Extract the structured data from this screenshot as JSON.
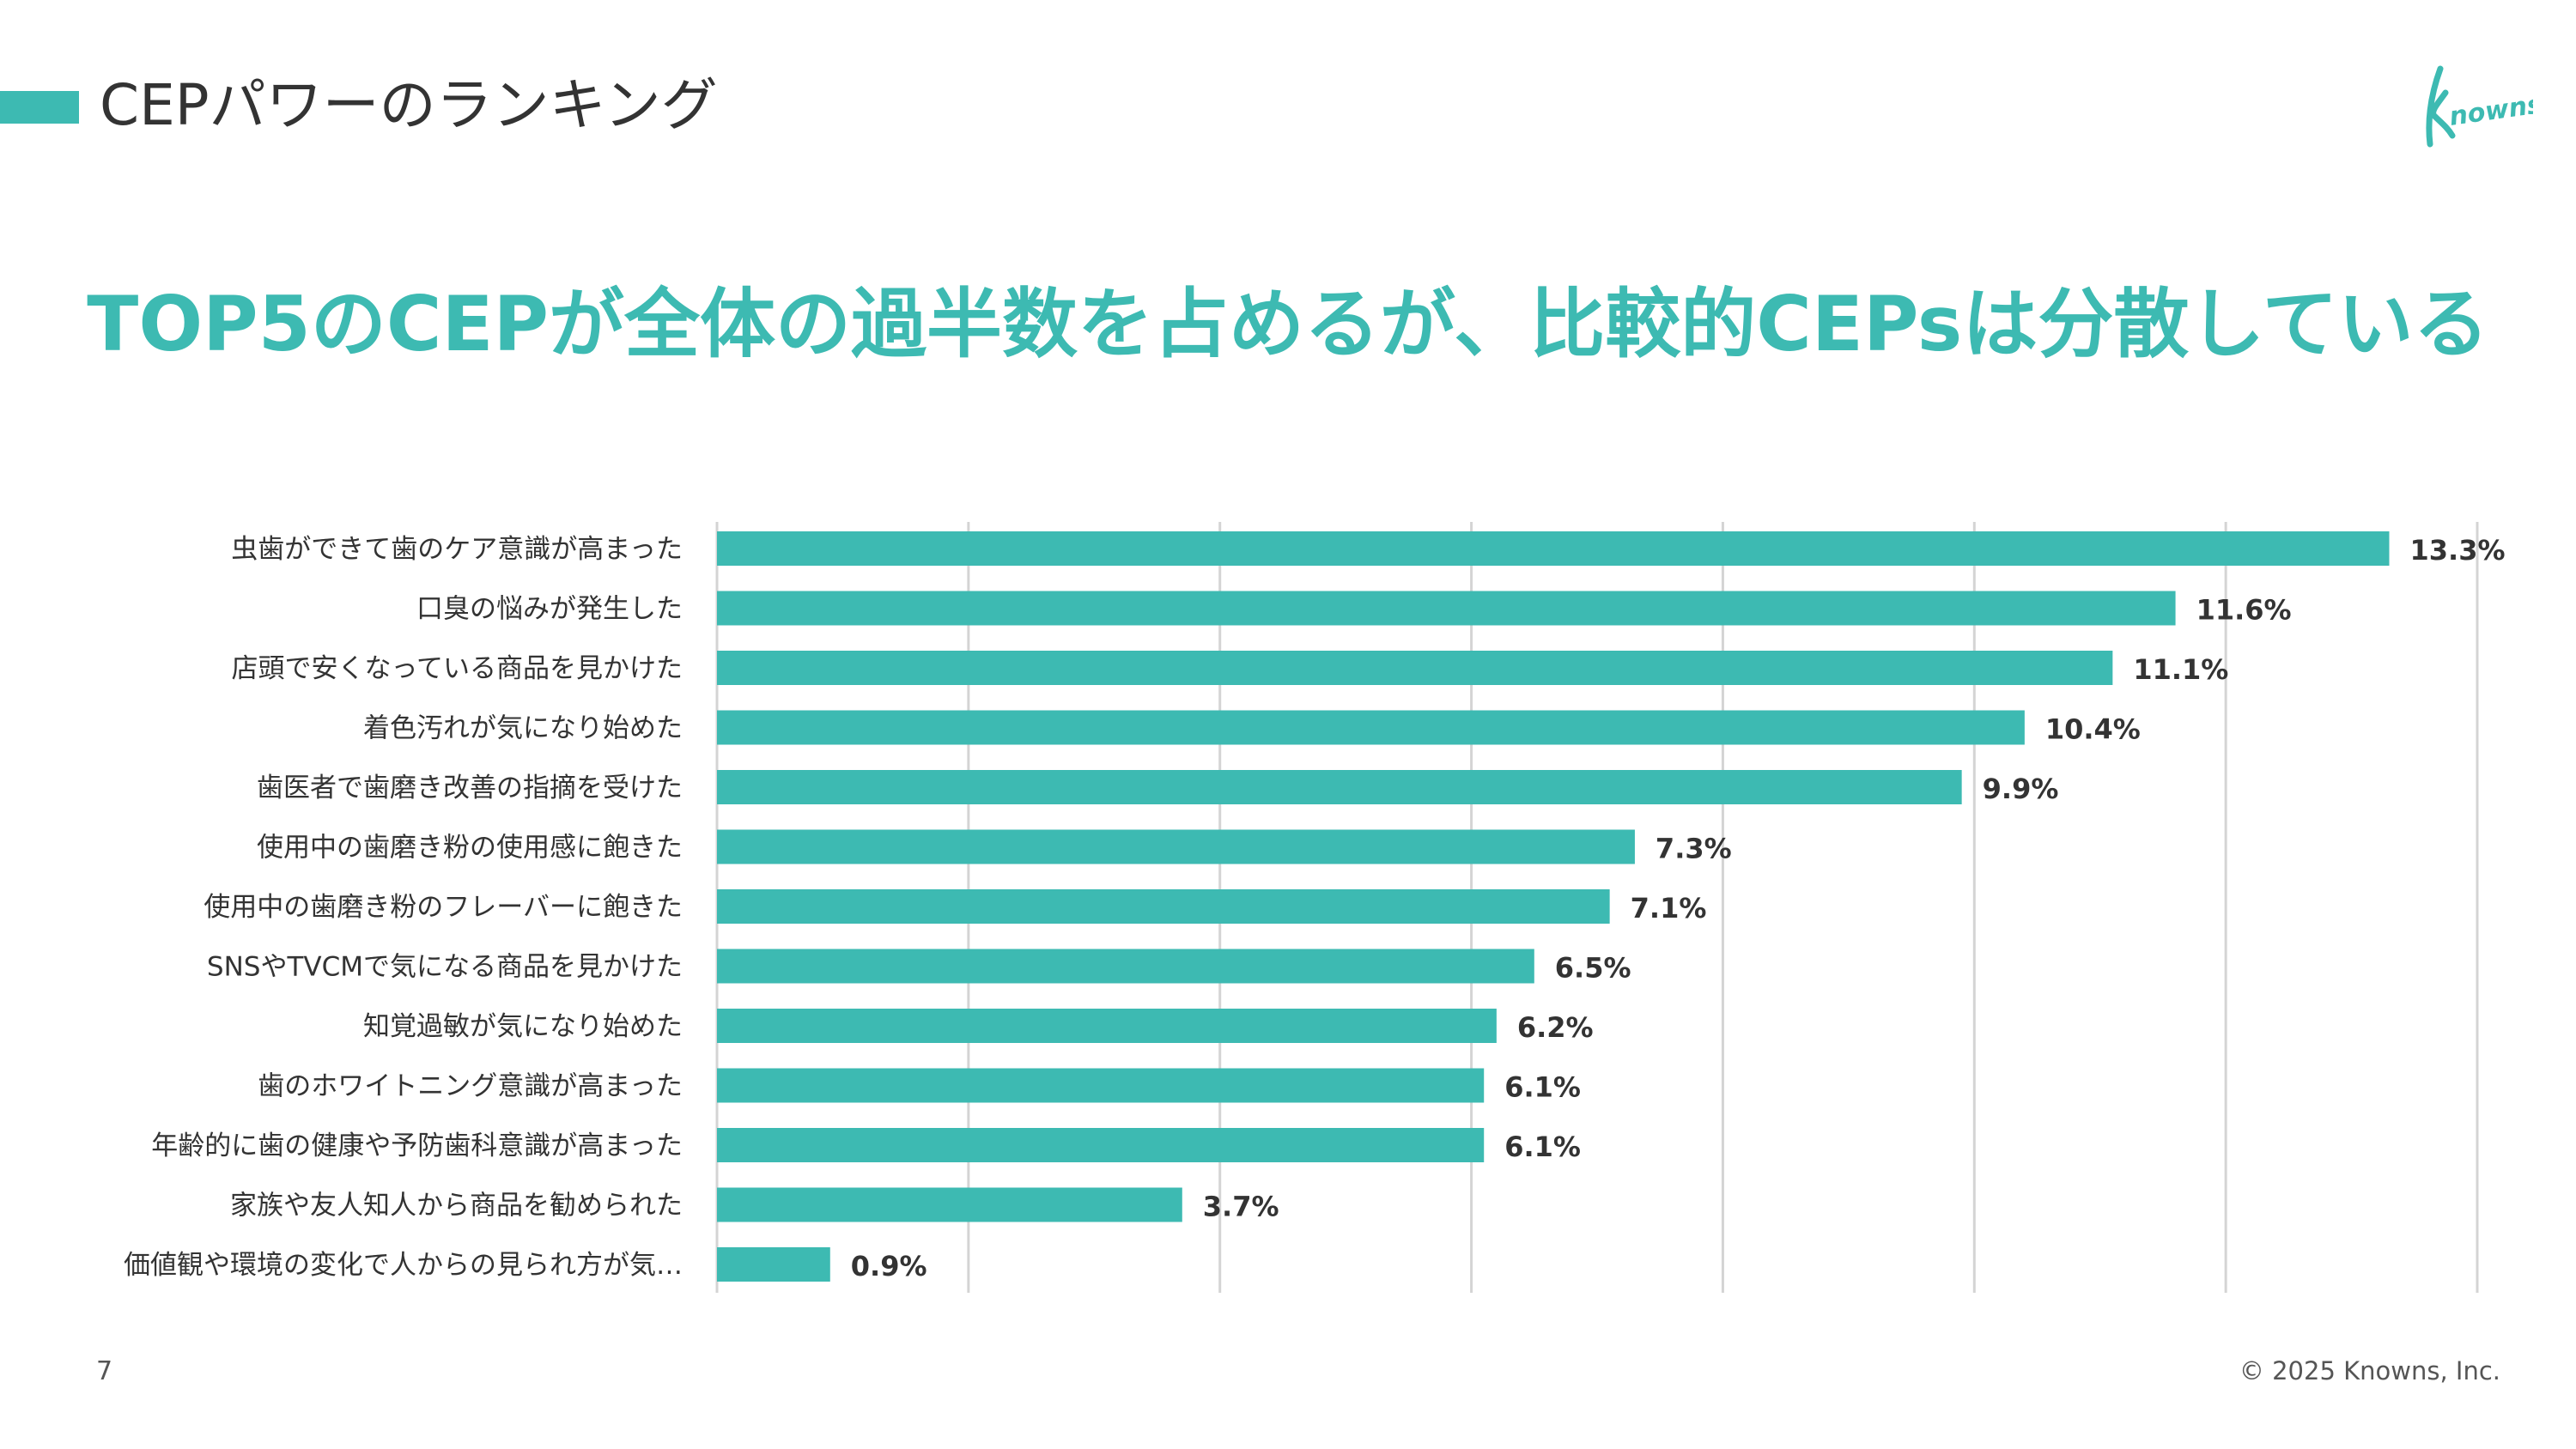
{
  "header": {
    "section_title": "CEPパワーのランキング",
    "logo_text": "Knowns"
  },
  "headline": "TOP5のCEPが全体の過半数を占めるが、比較的CEPsは分散している",
  "footer": {
    "page_number": "7",
    "copyright": "© 2025 Knowns, Inc."
  },
  "colors": {
    "accent": "#3dbab2",
    "bar": "#3dbab2",
    "grid": "#d4d4d4",
    "text": "#333333"
  },
  "chart_data": {
    "type": "bar",
    "orientation": "horizontal",
    "title": "",
    "xlabel": "",
    "ylabel": "",
    "xlim": [
      0,
      14
    ],
    "grid": true,
    "categories": [
      "虫歯ができて歯のケア意識が高まった",
      "口臭の悩みが発生した",
      "店頭で安くなっている商品を見かけた",
      "着色汚れが気になり始めた",
      "歯医者で歯磨き改善の指摘を受けた",
      "使用中の歯磨き粉の使用感に飽きた",
      "使用中の歯磨き粉のフレーバーに飽きた",
      "SNSやTVCMで気になる商品を見かけた",
      "知覚過敏が気になり始めた",
      "歯のホワイトニング意識が高まった",
      "年齢的に歯の健康や予防歯科意識が高まった",
      "家族や友人知人から商品を勧められた",
      "価値観や環境の変化で人からの見られ方が気…"
    ],
    "values": [
      13.3,
      11.6,
      11.1,
      10.4,
      9.9,
      7.3,
      7.1,
      6.5,
      6.2,
      6.1,
      6.1,
      3.7,
      0.9
    ],
    "value_labels": [
      "13.3%",
      "11.6%",
      "11.1%",
      "10.4%",
      "9.9%",
      "7.3%",
      "7.1%",
      "6.5%",
      "6.2%",
      "6.1%",
      "6.1%",
      "3.7%",
      "0.9%"
    ]
  }
}
